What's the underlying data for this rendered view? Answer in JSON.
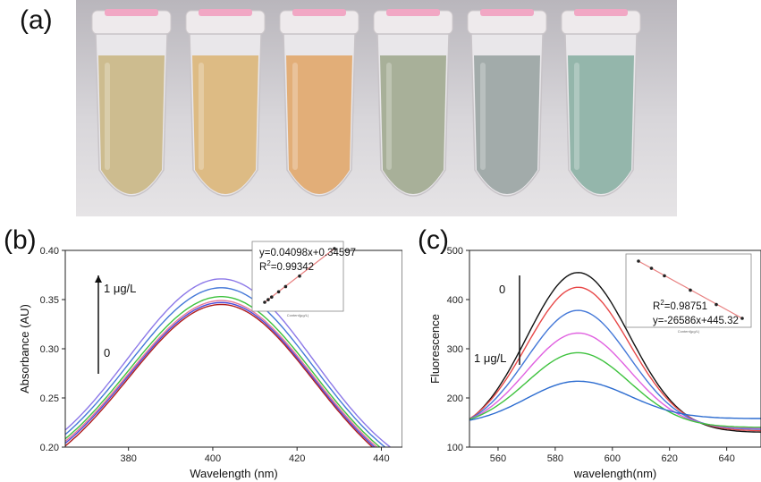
{
  "panels": {
    "a": "(a)",
    "b": "(b)",
    "c": "(c)"
  },
  "chart_data": [
    {
      "panel": "(b)",
      "type": "line",
      "xlabel": "Wavelength (nm)",
      "ylabel": "Absorbance (AU)",
      "xlim": [
        365,
        445
      ],
      "ylim": [
        0.2,
        0.4
      ],
      "xticks": [
        380,
        400,
        420,
        440
      ],
      "yticks": [
        0.2,
        0.25,
        0.3,
        0.35,
        0.4
      ],
      "arrow_top_label": "1 μg/L",
      "arrow_bottom_label": "0",
      "series": [
        {
          "color": "#b01c1c",
          "peak_x": 402,
          "peak_y": 0.345,
          "base_left": 0.155,
          "base_right": 0.148
        },
        {
          "color": "#4a4adc",
          "peak_x": 402,
          "peak_y": 0.347,
          "base_left": 0.158,
          "base_right": 0.15
        },
        {
          "color": "#e87898",
          "peak_x": 402,
          "peak_y": 0.349,
          "base_left": 0.16,
          "base_right": 0.152
        },
        {
          "color": "#3ec23e",
          "peak_x": 402,
          "peak_y": 0.353,
          "base_left": 0.162,
          "base_right": 0.154
        },
        {
          "color": "#4478d8",
          "peak_x": 402,
          "peak_y": 0.362,
          "base_left": 0.165,
          "base_right": 0.157
        },
        {
          "color": "#8c78e8",
          "peak_x": 402,
          "peak_y": 0.371,
          "base_left": 0.168,
          "base_right": 0.16
        }
      ],
      "inset": {
        "equation": "y=0.04098x+0.34597",
        "r2_prefix": "R",
        "r2_sup": "2",
        "r2_value": "=0.99342",
        "xlabel": "Content(μg/L)",
        "points_x": [
          0.0,
          0.05,
          0.1,
          0.2,
          0.3,
          0.5,
          1.0
        ],
        "points_y": [
          0.346,
          0.348,
          0.35,
          0.354,
          0.358,
          0.366,
          0.387
        ]
      }
    },
    {
      "panel": "(c)",
      "type": "line",
      "xlabel": "wavelength(nm)",
      "ylabel": "Fluorescence",
      "xlim": [
        550,
        652
      ],
      "ylim": [
        100,
        500
      ],
      "xticks": [
        560,
        580,
        600,
        620,
        640
      ],
      "yticks": [
        100,
        200,
        300,
        400,
        500
      ],
      "arrow_top_label": "0",
      "arrow_bottom_label": "1 μg/L",
      "series": [
        {
          "color": "#111111",
          "peak_x": 588,
          "peak_y": 455,
          "base_left": 120,
          "base_right": 130
        },
        {
          "color": "#e84848",
          "peak_x": 588,
          "peak_y": 425,
          "base_left": 125,
          "base_right": 133
        },
        {
          "color": "#4478d8",
          "peak_x": 588,
          "peak_y": 378,
          "base_left": 130,
          "base_right": 136
        },
        {
          "color": "#e060e0",
          "peak_x": 588,
          "peak_y": 332,
          "base_left": 135,
          "base_right": 138
        },
        {
          "color": "#3ec23e",
          "peak_x": 588,
          "peak_y": 292,
          "base_left": 140,
          "base_right": 140
        },
        {
          "color": "#2c6cd0",
          "peak_x": 588,
          "peak_y": 234,
          "base_left": 145,
          "base_right": 158
        }
      ],
      "inset": {
        "r2_prefix": "R",
        "r2_sup": "2",
        "r2_value": "=0.98751",
        "equation": "y=-26586x+445.32",
        "xlabel": "Content(μg/L)",
        "ylabel": "Fluorescence",
        "points_x": [
          0.0,
          0.001,
          0.002,
          0.004,
          0.006,
          0.008
        ],
        "points_y": [
          447,
          420,
          392,
          338,
          284,
          232
        ]
      }
    }
  ],
  "photo": {
    "tubes": [
      {
        "liquid": "#cbb98a"
      },
      {
        "liquid": "#dcb87e"
      },
      {
        "liquid": "#e2ab72"
      },
      {
        "liquid": "#a4ad95"
      },
      {
        "liquid": "#9ea8a6"
      },
      {
        "liquid": "#8fb3a8"
      }
    ]
  }
}
